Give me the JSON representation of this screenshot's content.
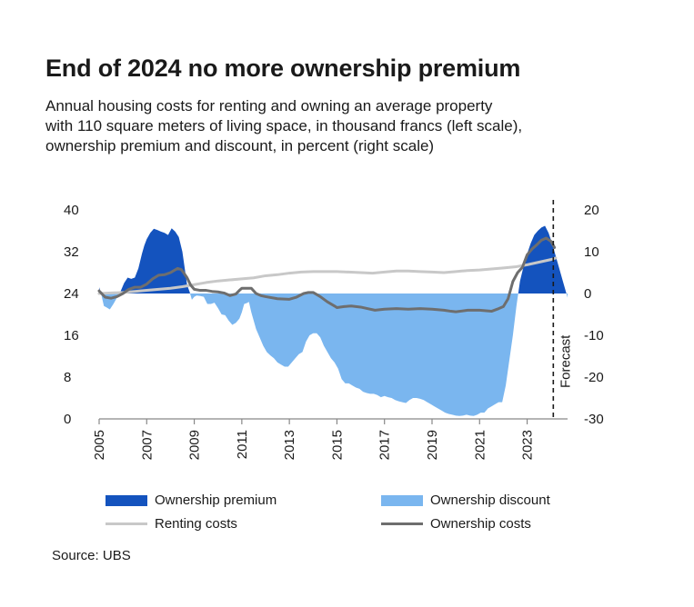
{
  "title": "End of 2024 no more ownership premium",
  "subtitle_lines": [
    "Annual housing costs for renting and owning an average property",
    "with 110 square meters of living space, in thousand francs (left scale),",
    "ownership premium and discount, in percent (right scale)"
  ],
  "source": "Source: UBS",
  "colors": {
    "premium": "#1453be",
    "discount": "#7ab6ef",
    "renting": "#c8c8c8",
    "ownership": "#6e6e6e",
    "axis": "#888888"
  },
  "chart_data": {
    "type": "area",
    "left_axis": {
      "ylim": [
        0,
        40
      ],
      "ticks": [
        "0",
        "8",
        "16",
        "24",
        "32",
        "40"
      ]
    },
    "right_axis": {
      "ylim": [
        -30,
        20
      ],
      "ticks": [
        "-30",
        "-20",
        "-10",
        "0",
        "10",
        "20"
      ]
    },
    "x_axis": {
      "xlim": [
        2005,
        2024.7
      ],
      "ticks": [
        "2005",
        "2007",
        "2009",
        "2011",
        "2013",
        "2015",
        "2017",
        "2019",
        "2021",
        "2023"
      ]
    },
    "forecast": {
      "label": "Forecast",
      "x": 2024.1
    },
    "legend": [
      {
        "name": "Ownership premium",
        "kind": "area",
        "color_key": "premium"
      },
      {
        "name": "Ownership discount",
        "kind": "area",
        "color_key": "discount"
      },
      {
        "name": "Renting costs",
        "kind": "line",
        "color_key": "renting"
      },
      {
        "name": "Ownership costs",
        "kind": "line",
        "color_key": "ownership"
      }
    ],
    "series": [
      {
        "name": "Ownership premium/discount",
        "axis": "right",
        "x": [
          2005.0,
          2005.1,
          2005.2,
          2005.3,
          2005.45,
          2005.6,
          2005.75,
          2005.9,
          2006.05,
          2006.2,
          2006.35,
          2006.5,
          2006.65,
          2006.8,
          2006.9,
          2007.0,
          2007.15,
          2007.3,
          2007.45,
          2007.6,
          2007.75,
          2007.9,
          2008.05,
          2008.2,
          2008.35,
          2008.5,
          2008.6,
          2008.7,
          2008.8,
          2008.9,
          2009.0,
          2009.1,
          2009.25,
          2009.4,
          2009.55,
          2009.7,
          2009.85,
          2010.0,
          2010.15,
          2010.3,
          2010.45,
          2010.6,
          2010.75,
          2010.9,
          2011.0,
          2011.1,
          2011.2,
          2011.3,
          2011.4,
          2011.5,
          2011.6,
          2011.75,
          2011.9,
          2012.05,
          2012.2,
          2012.35,
          2012.5,
          2012.65,
          2012.8,
          2012.95,
          2013.1,
          2013.25,
          2013.4,
          2013.55,
          2013.7,
          2013.85,
          2014.0,
          2014.15,
          2014.3,
          2014.45,
          2014.6,
          2014.75,
          2014.9,
          2015.05,
          2015.2,
          2015.35,
          2015.5,
          2015.65,
          2015.8,
          2015.95,
          2016.1,
          2016.25,
          2016.4,
          2016.55,
          2016.7,
          2016.85,
          2017.0,
          2017.15,
          2017.3,
          2017.45,
          2017.6,
          2017.75,
          2017.9,
          2018.05,
          2018.2,
          2018.35,
          2018.5,
          2018.65,
          2018.8,
          2018.95,
          2019.1,
          2019.25,
          2019.4,
          2019.55,
          2019.7,
          2019.85,
          2020.0,
          2020.15,
          2020.3,
          2020.45,
          2020.6,
          2020.75,
          2020.9,
          2021.05,
          2021.2,
          2021.35,
          2021.5,
          2021.65,
          2021.8,
          2021.95,
          2022.1,
          2022.25,
          2022.4,
          2022.55,
          2022.7,
          2022.85,
          2023.0,
          2023.15,
          2023.3,
          2023.45,
          2023.6,
          2023.75,
          2023.9,
          2024.05,
          2024.2,
          2024.35,
          2024.5,
          2024.6,
          2024.7
        ],
        "y": [
          1.5,
          -0.5,
          -3.0,
          -3.3,
          -3.8,
          -2.5,
          -1.0,
          0.5,
          2.5,
          3.8,
          3.5,
          3.8,
          6.0,
          9.5,
          11.5,
          13.0,
          14.5,
          15.5,
          15.2,
          14.8,
          14.5,
          14.0,
          15.6,
          14.8,
          13.5,
          10.0,
          6.0,
          2.0,
          0.5,
          -1.5,
          -0.8,
          -0.5,
          -0.6,
          -0.8,
          -2.5,
          -2.5,
          -2.2,
          -3.5,
          -5.0,
          -5.2,
          -6.5,
          -7.5,
          -7.0,
          -6.0,
          -4.5,
          -2.5,
          -2.3,
          -2.0,
          -4.5,
          -6.5,
          -8.5,
          -10.5,
          -12.5,
          -14.0,
          -14.8,
          -15.5,
          -16.5,
          -17.0,
          -17.5,
          -17.5,
          -16.5,
          -15.5,
          -14.5,
          -14.0,
          -11.5,
          -10.0,
          -9.5,
          -9.5,
          -10.5,
          -12.5,
          -14.0,
          -15.5,
          -16.5,
          -18.0,
          -20.5,
          -21.5,
          -21.5,
          -22.0,
          -22.5,
          -22.8,
          -23.5,
          -23.8,
          -24.0,
          -24.0,
          -24.3,
          -24.8,
          -24.5,
          -24.8,
          -25.0,
          -25.5,
          -25.8,
          -26.0,
          -26.2,
          -25.5,
          -25.0,
          -25.0,
          -25.2,
          -25.5,
          -26.0,
          -26.5,
          -27.0,
          -27.5,
          -28.0,
          -28.5,
          -28.8,
          -29.0,
          -29.2,
          -29.3,
          -29.2,
          -29.0,
          -29.2,
          -29.3,
          -29.0,
          -28.5,
          -28.5,
          -27.5,
          -27.0,
          -26.5,
          -26.0,
          -26.0,
          -22.0,
          -16.0,
          -10.0,
          -3.0,
          3.0,
          6.5,
          9.5,
          12.0,
          14.0,
          15.0,
          15.8,
          16.2,
          14.5,
          12.0,
          9.0,
          6.0,
          3.0,
          1.0,
          -1.0
        ]
      },
      {
        "name": "Renting costs",
        "axis": "left",
        "x": [
          2005.0,
          2005.5,
          2006.0,
          2006.5,
          2007.0,
          2007.5,
          2008.0,
          2008.5,
          2009.0,
          2009.5,
          2010.0,
          2010.5,
          2011.0,
          2011.5,
          2012.0,
          2012.5,
          2013.0,
          2013.5,
          2014.0,
          2014.5,
          2015.0,
          2015.5,
          2016.0,
          2016.5,
          2017.0,
          2017.5,
          2018.0,
          2018.5,
          2019.0,
          2019.5,
          2020.0,
          2020.5,
          2021.0,
          2021.5,
          2022.0,
          2022.5,
          2023.0,
          2023.5,
          2024.0,
          2024.2
        ],
        "y": [
          24.0,
          24.1,
          24.2,
          24.4,
          24.6,
          24.8,
          25.0,
          25.3,
          25.7,
          26.1,
          26.4,
          26.6,
          26.8,
          27.0,
          27.4,
          27.6,
          27.9,
          28.1,
          28.2,
          28.2,
          28.2,
          28.1,
          28.0,
          27.9,
          28.1,
          28.3,
          28.3,
          28.2,
          28.1,
          28.0,
          28.2,
          28.4,
          28.5,
          28.7,
          28.9,
          29.1,
          29.5,
          30.0,
          30.5,
          30.8
        ]
      },
      {
        "name": "Ownership costs",
        "axis": "left",
        "x": [
          2005.0,
          2005.25,
          2005.5,
          2005.75,
          2006.0,
          2006.25,
          2006.5,
          2006.75,
          2007.0,
          2007.25,
          2007.5,
          2007.75,
          2008.0,
          2008.15,
          2008.3,
          2008.45,
          2008.55,
          2008.7,
          2008.85,
          2009.0,
          2009.25,
          2009.5,
          2009.75,
          2010.0,
          2010.25,
          2010.5,
          2010.75,
          2010.9,
          2011.0,
          2011.2,
          2011.4,
          2011.6,
          2011.8,
          2012.0,
          2012.5,
          2013.0,
          2013.3,
          2013.6,
          2013.8,
          2014.0,
          2014.3,
          2014.6,
          2014.9,
          2015.0,
          2015.3,
          2015.6,
          2016.0,
          2016.3,
          2016.6,
          2017.0,
          2017.5,
          2018.0,
          2018.5,
          2019.0,
          2019.5,
          2019.8,
          2020.0,
          2020.5,
          2021.0,
          2021.5,
          2021.8,
          2022.0,
          2022.2,
          2022.4,
          2022.6,
          2022.8,
          2023.0,
          2023.2,
          2023.4,
          2023.6,
          2023.8,
          2024.0,
          2024.15
        ],
        "y": [
          24.5,
          23.3,
          23.1,
          23.4,
          24.0,
          24.8,
          25.2,
          25.2,
          25.8,
          26.8,
          27.5,
          27.6,
          28.0,
          28.4,
          28.8,
          28.6,
          28.0,
          27.0,
          25.6,
          24.8,
          24.6,
          24.6,
          24.4,
          24.3,
          24.1,
          23.6,
          23.9,
          24.6,
          25.0,
          25.0,
          25.0,
          24.0,
          23.6,
          23.4,
          23.0,
          22.9,
          23.3,
          24.0,
          24.2,
          24.2,
          23.4,
          22.4,
          21.6,
          21.3,
          21.5,
          21.6,
          21.4,
          21.1,
          20.8,
          21.0,
          21.1,
          21.0,
          21.1,
          21.0,
          20.8,
          20.6,
          20.5,
          20.8,
          20.8,
          20.6,
          21.1,
          21.5,
          23.0,
          26.3,
          28.0,
          29.0,
          31.4,
          32.5,
          33.3,
          34.2,
          34.6,
          34.0,
          32.8
        ]
      }
    ]
  }
}
